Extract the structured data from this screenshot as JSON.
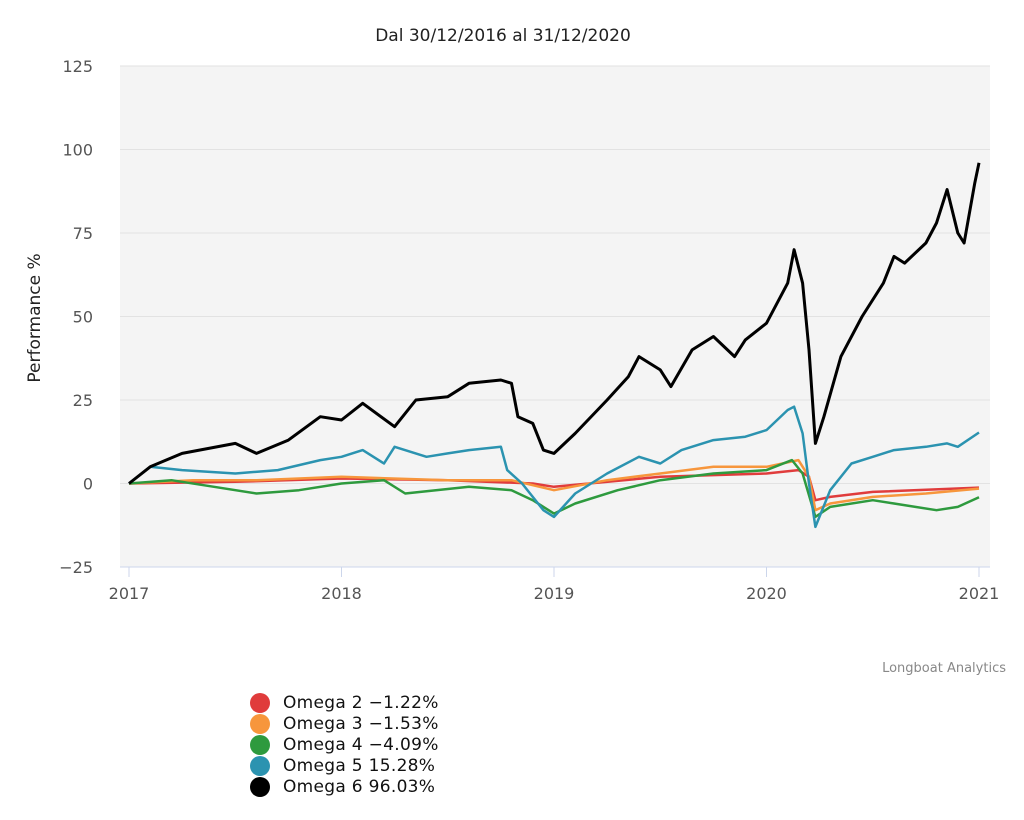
{
  "chart_data": {
    "type": "line",
    "title": "Dal 30/12/2016 al 31/12/2020",
    "xlabel": "",
    "ylabel": "Performance %",
    "xlim": [
      2017,
      2021.05
    ],
    "ylim": [
      -25,
      125
    ],
    "yticks": [
      -25,
      0,
      25,
      50,
      75,
      100,
      125
    ],
    "xticks": [
      2017,
      2018,
      2019,
      2020,
      2021
    ],
    "grid": true,
    "legend_position": "bottom-left",
    "credits": "Longboat Analytics",
    "series": [
      {
        "name": "Omega 2",
        "legend": "Omega 2 -1.22%",
        "color": "#e03c3c",
        "x": [
          2017,
          2017.5,
          2018,
          2018.5,
          2018.9,
          2019,
          2019.5,
          2020,
          2020.15,
          2020.2,
          2020.23,
          2020.3,
          2020.5,
          2021
        ],
        "y": [
          0,
          0.5,
          1.5,
          1,
          0,
          -1,
          2,
          3,
          4,
          2,
          -5,
          -4,
          -2.5,
          -1.22
        ]
      },
      {
        "name": "Omega 3",
        "legend": "Omega 3 -1.53%",
        "color": "#f7963c",
        "x": [
          2017,
          2017.3,
          2017.6,
          2018,
          2018.5,
          2018.8,
          2019,
          2019.25,
          2019.5,
          2019.75,
          2020,
          2020.15,
          2020.2,
          2020.23,
          2020.3,
          2020.5,
          2020.75,
          2021
        ],
        "y": [
          0,
          1,
          1,
          2,
          1,
          1,
          -2,
          1,
          3,
          5,
          5,
          7,
          2,
          -8,
          -6,
          -4,
          -3,
          -1.53
        ]
      },
      {
        "name": "Omega 4",
        "legend": "Omega 4 -4.09%",
        "color": "#2e9a3e",
        "x": [
          2017,
          2017.2,
          2017.4,
          2017.6,
          2017.8,
          2018,
          2018.2,
          2018.3,
          2018.6,
          2018.8,
          2018.9,
          2019,
          2019.1,
          2019.3,
          2019.5,
          2019.75,
          2020,
          2020.12,
          2020.17,
          2020.23,
          2020.3,
          2020.5,
          2020.6,
          2020.8,
          2020.9,
          2021
        ],
        "y": [
          0,
          1,
          -1,
          -3,
          -2,
          0,
          1,
          -3,
          -1,
          -2,
          -5,
          -9,
          -6,
          -2,
          1,
          3,
          4,
          7,
          3,
          -10,
          -7,
          -5,
          -6,
          -8,
          -7,
          -4.09
        ]
      },
      {
        "name": "Omega 5",
        "legend": "Omega 5 15.28%",
        "color": "#2b93b0",
        "x": [
          2017,
          2017.1,
          2017.25,
          2017.5,
          2017.7,
          2017.9,
          2018,
          2018.1,
          2018.2,
          2018.25,
          2018.4,
          2018.5,
          2018.6,
          2018.75,
          2018.78,
          2018.85,
          2018.95,
          2019,
          2019.1,
          2019.25,
          2019.4,
          2019.5,
          2019.6,
          2019.75,
          2019.9,
          2020,
          2020.1,
          2020.13,
          2020.17,
          2020.2,
          2020.23,
          2020.3,
          2020.4,
          2020.5,
          2020.6,
          2020.75,
          2020.85,
          2020.9,
          2021
        ],
        "y": [
          0,
          5,
          4,
          3,
          4,
          7,
          8,
          10,
          6,
          11,
          8,
          9,
          10,
          11,
          4,
          0,
          -8,
          -10,
          -3,
          3,
          8,
          6,
          10,
          13,
          14,
          16,
          22,
          23,
          15,
          0,
          -13,
          -2,
          6,
          8,
          10,
          11,
          12,
          11,
          15.28
        ]
      },
      {
        "name": "Omega 6",
        "legend": "Omega 6 96.03%",
        "color": "#000000",
        "x": [
          2017,
          2017.1,
          2017.25,
          2017.5,
          2017.6,
          2017.75,
          2017.9,
          2018,
          2018.1,
          2018.25,
          2018.35,
          2018.5,
          2018.6,
          2018.75,
          2018.8,
          2018.83,
          2018.9,
          2018.95,
          2019,
          2019.1,
          2019.25,
          2019.35,
          2019.4,
          2019.5,
          2019.55,
          2019.65,
          2019.75,
          2019.85,
          2019.9,
          2020,
          2020.1,
          2020.13,
          2020.17,
          2020.2,
          2020.23,
          2020.27,
          2020.35,
          2020.45,
          2020.55,
          2020.6,
          2020.65,
          2020.75,
          2020.8,
          2020.85,
          2020.9,
          2020.93,
          2020.98,
          2021
        ],
        "y": [
          0,
          5,
          9,
          12,
          9,
          13,
          20,
          19,
          24,
          17,
          25,
          26,
          30,
          31,
          30,
          20,
          18,
          10,
          9,
          15,
          25,
          32,
          38,
          34,
          29,
          40,
          44,
          38,
          43,
          48,
          60,
          70,
          60,
          40,
          12,
          20,
          38,
          50,
          60,
          68,
          66,
          72,
          78,
          88,
          75,
          72,
          90,
          96.03
        ]
      }
    ]
  }
}
